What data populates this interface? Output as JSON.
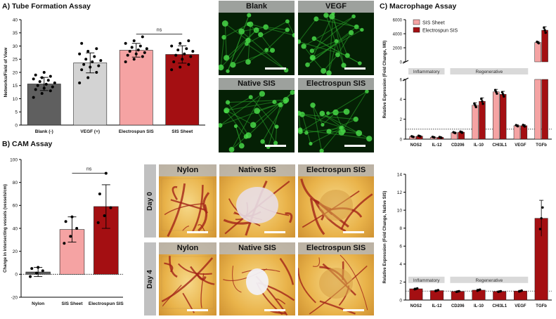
{
  "panel_titles": {
    "a": "A) Tube Formation Assay",
    "b": "B) CAM Assay",
    "c": "C) Macrophage Assay"
  },
  "tube_images": [
    {
      "label": "Blank"
    },
    {
      "label": "VEGF"
    },
    {
      "label": "Native SIS"
    },
    {
      "label": "Electrospun SIS"
    }
  ],
  "cam_images": {
    "day_labels": [
      "Day 0",
      "Day 4"
    ],
    "labels": [
      "Nylon",
      "Native SIS",
      "Electrospun SIS"
    ]
  },
  "colors": {
    "dark_gray": "#5f5f5f",
    "light_gray": "#d3d3d3",
    "pink": "#f5a3a3",
    "dark_red": "#a40f12",
    "green_fluor": "#33cc33",
    "cam_yellow": "#e9b34a"
  },
  "chart_data": [
    {
      "id": "tube",
      "type": "bar",
      "title": "",
      "xlabel": "",
      "ylabel": "Networks/Field of View",
      "ylim": [
        0,
        40
      ],
      "yticks": [
        0,
        5,
        10,
        15,
        20,
        25,
        30,
        35,
        40
      ],
      "categories": [
        "Blank (-)",
        "VEGF (+)",
        "Electrospun SIS",
        "SIS Sheet"
      ],
      "values": [
        15.6,
        23.6,
        28.4,
        26.8
      ],
      "errors": [
        2.5,
        3.8,
        2.6,
        3.3
      ],
      "colors": [
        "#5f5f5f",
        "#d3d3d3",
        "#f5a3a3",
        "#a40f12"
      ],
      "points": [
        [
          10.5,
          12,
          13,
          13.5,
          14,
          14.5,
          15,
          15.5,
          16,
          16.5,
          17,
          17.5,
          18,
          18.5,
          19,
          20
        ],
        [
          16,
          18,
          20,
          21,
          22,
          22.5,
          23,
          24,
          24.5,
          25,
          26,
          27,
          28,
          29,
          31
        ],
        [
          24,
          25,
          26,
          26.5,
          27,
          27.5,
          28,
          28.5,
          29,
          29.5,
          30,
          31,
          32,
          33.5
        ],
        [
          21,
          22,
          23,
          24,
          25,
          26,
          26.5,
          27,
          28,
          28.5,
          29,
          30,
          31,
          32
        ]
      ],
      "annotations": [
        {
          "text": "ns",
          "from": 2,
          "to": 3,
          "y": 34.5
        }
      ]
    },
    {
      "id": "cam",
      "type": "bar",
      "title": "",
      "xlabel": "",
      "ylabel": "Change in intersecting vessels (vessels/cm)",
      "ylim": [
        -20,
        100
      ],
      "yticks": [
        -20,
        0,
        20,
        40,
        60,
        80,
        100
      ],
      "categories": [
        "Nylon",
        "SIS Sheet",
        "Electrospun SIS"
      ],
      "values": [
        2,
        39,
        59
      ],
      "errors": [
        4,
        11,
        19
      ],
      "colors": [
        "#5f5f5f",
        "#f5a3a3",
        "#a40f12"
      ],
      "points": [
        [
          -2,
          1,
          3,
          5,
          6
        ],
        [
          27,
          33,
          40,
          46,
          50
        ],
        [
          45,
          51,
          58,
          70,
          88
        ]
      ],
      "annotations": [
        {
          "text": "ns",
          "from": 1,
          "to": 2,
          "y": 88
        }
      ]
    },
    {
      "id": "macro_m0",
      "type": "bar",
      "title": "",
      "xlabel": "",
      "ylabel": "Relative Expression (Fold Change, M0)",
      "categories": [
        "NOS2",
        "IL-12",
        "CD206",
        "IL-10",
        "CHI3L1",
        "VEGF",
        "TGFb"
      ],
      "series": [
        {
          "name": "SIS Sheet",
          "color": "#f5a3a3",
          "values": [
            0.25,
            0.2,
            0.65,
            3.4,
            4.75,
            1.35,
            2750
          ],
          "errors": [
            0.05,
            0.04,
            0.06,
            0.25,
            0.25,
            0.08,
            150
          ]
        },
        {
          "name": "Electrospun SIS",
          "color": "#a40f12",
          "values": [
            0.3,
            0.18,
            0.7,
            3.8,
            4.5,
            1.35,
            4500
          ],
          "errors": [
            0.05,
            0.04,
            0.08,
            0.35,
            0.3,
            0.1,
            500
          ]
        }
      ],
      "lower_axis": {
        "ylim": [
          0,
          6
        ],
        "yticks": [
          0,
          2,
          4,
          6
        ]
      },
      "upper_axis": {
        "ylim": [
          0,
          6000
        ],
        "yticks": [
          0,
          2000,
          4000,
          6000
        ]
      },
      "reference_line": 1,
      "groups": [
        {
          "label": "Inflammatory",
          "from": 0,
          "to": 1
        },
        {
          "label": "Regenerative",
          "from": 2,
          "to": 5
        }
      ],
      "legend": "top-left"
    },
    {
      "id": "macro_native",
      "type": "bar",
      "title": "",
      "xlabel": "",
      "ylabel": "Relative Expression (Fold Change, Native SIS)",
      "ylim": [
        0,
        14
      ],
      "yticks": [
        0,
        2,
        4,
        6,
        8,
        10,
        12,
        14
      ],
      "categories": [
        "NOS2",
        "IL-12",
        "CD206",
        "IL-10",
        "CHI3L1",
        "VEGF",
        "TGFb"
      ],
      "values": [
        1.25,
        1.05,
        0.95,
        1.1,
        0.95,
        1.0,
        9.1
      ],
      "errors": [
        0.08,
        0.08,
        0.06,
        0.1,
        0.06,
        0.08,
        2.0
      ],
      "colors": [
        "#a40f12"
      ],
      "reference_line": 1,
      "groups": [
        {
          "label": "Inflammatory",
          "from": 0,
          "to": 1
        },
        {
          "label": "Regenerative",
          "from": 2,
          "to": 5
        }
      ]
    }
  ]
}
